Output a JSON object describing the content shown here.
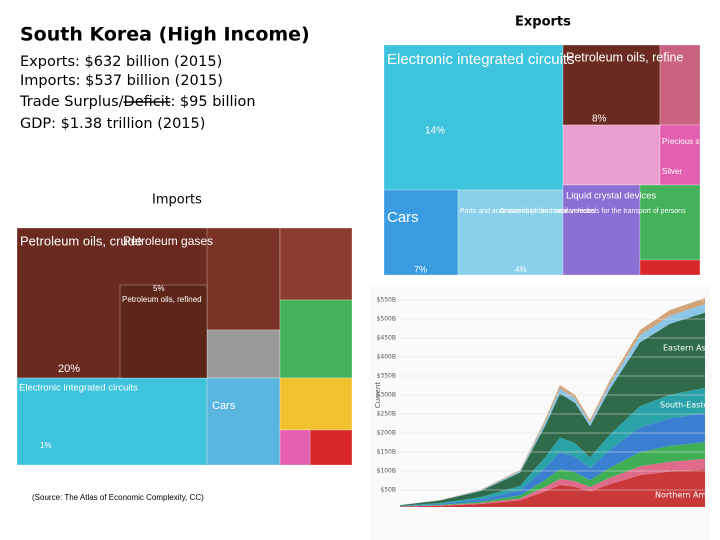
{
  "header": {
    "title": "South Korea (High Income)"
  },
  "stats": {
    "exports": "Exports: $632 billion (2015)",
    "imports": "Imports: $537 billion (2015)",
    "trade": {
      "before": "Trade Surplus/",
      "struck": "Deficit",
      "after": ": $95 billion"
    },
    "gdp": "GDP: $1.38 trillion (2015)"
  },
  "imports": {
    "title": "Imports",
    "labels": [
      "Petroleum oils, crude",
      "Petroleum gases",
      "Petroleum oils, refined",
      "20%",
      "5%",
      "Electronic integrated circuits",
      "Cars",
      "1%"
    ]
  },
  "exports": {
    "title": "Exports",
    "labels": [
      "Electronic integrated circuits",
      "14%",
      "Petroleum oils, refine",
      "8%",
      "Precious stones",
      "Silver",
      "Cars",
      "7%",
      "Parts and accessories of the motor vehicles",
      "Cruise ships and similar vessels for the transport of persons",
      "4%",
      "Liquid crystal devices"
    ]
  },
  "area_chart": {
    "y_label": "Current",
    "yticks": [
      "$550B",
      "$500B",
      "$450B",
      "$400B",
      "$350B",
      "$300B",
      "$250B",
      "$200B",
      "$150B",
      "$100B",
      "$50B"
    ],
    "regions": [
      "Eastern Asia",
      "South-Eastern Asia",
      "Northern America"
    ]
  },
  "source": "(Source: The Atlas of Economic Complexity, CC)"
}
